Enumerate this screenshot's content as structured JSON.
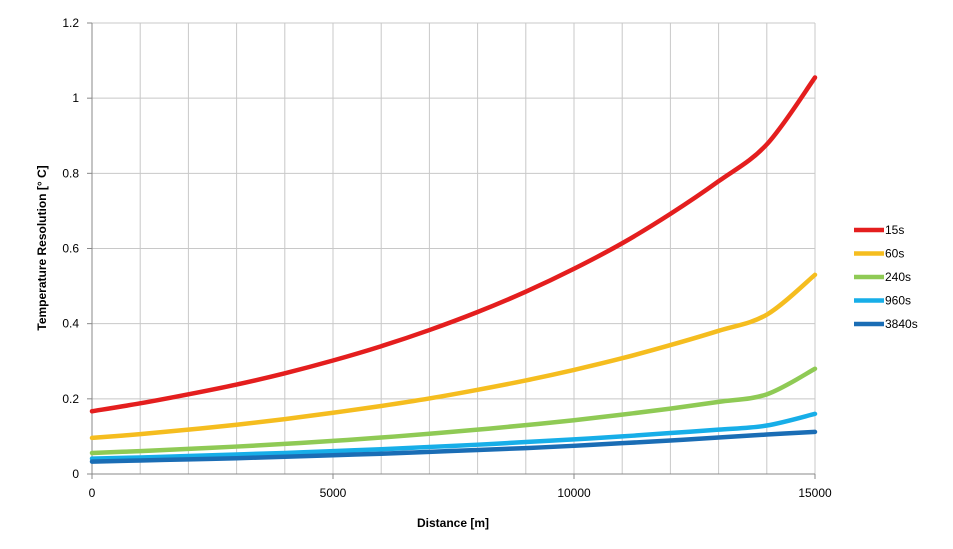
{
  "chart_data": {
    "type": "line",
    "xlabel": "Distance [m]",
    "ylabel": "Temperature Resolution [° C]",
    "xlim": [
      0,
      15000
    ],
    "ylim": [
      0,
      1.2
    ],
    "x_ticks": [
      0,
      5000,
      10000,
      15000
    ],
    "x_tick_labels": [
      "0",
      "5000",
      "10000",
      "15000"
    ],
    "x_minor_step": 1000,
    "y_ticks": [
      0,
      0.2,
      0.4,
      0.6,
      0.8,
      1.0,
      1.2
    ],
    "y_tick_labels": [
      "0",
      "0.2",
      "0.4",
      "0.6",
      "0.8",
      "1",
      "1.2"
    ],
    "grid": true,
    "legend_position": "right",
    "x": [
      0,
      1000,
      2000,
      3000,
      4000,
      5000,
      6000,
      7000,
      8000,
      9000,
      10000,
      11000,
      12000,
      13000,
      14000,
      15000
    ],
    "series": [
      {
        "name": "15s",
        "color": "#e41e1e",
        "values": [
          0.167,
          0.188,
          0.212,
          0.238,
          0.268,
          0.302,
          0.34,
          0.383,
          0.431,
          0.485,
          0.546,
          0.614,
          0.692,
          0.779,
          0.877,
          1.055
        ]
      },
      {
        "name": "60s",
        "color": "#f5bd1f",
        "values": [
          0.096,
          0.106,
          0.118,
          0.131,
          0.146,
          0.163,
          0.181,
          0.201,
          0.224,
          0.249,
          0.277,
          0.308,
          0.343,
          0.381,
          0.424,
          0.53
        ]
      },
      {
        "name": "240s",
        "color": "#8fca55",
        "values": [
          0.056,
          0.061,
          0.067,
          0.073,
          0.08,
          0.088,
          0.097,
          0.107,
          0.118,
          0.13,
          0.143,
          0.158,
          0.174,
          0.192,
          0.212,
          0.28
        ]
      },
      {
        "name": "960s",
        "color": "#17aee8",
        "values": [
          0.041,
          0.044,
          0.048,
          0.052,
          0.056,
          0.061,
          0.066,
          0.072,
          0.078,
          0.085,
          0.092,
          0.1,
          0.109,
          0.118,
          0.129,
          0.16
        ]
      },
      {
        "name": "3840s",
        "color": "#1a6db5",
        "values": [
          0.033,
          0.036,
          0.039,
          0.042,
          0.046,
          0.05,
          0.054,
          0.059,
          0.064,
          0.069,
          0.075,
          0.082,
          0.089,
          0.097,
          0.105,
          0.112
        ]
      }
    ]
  }
}
